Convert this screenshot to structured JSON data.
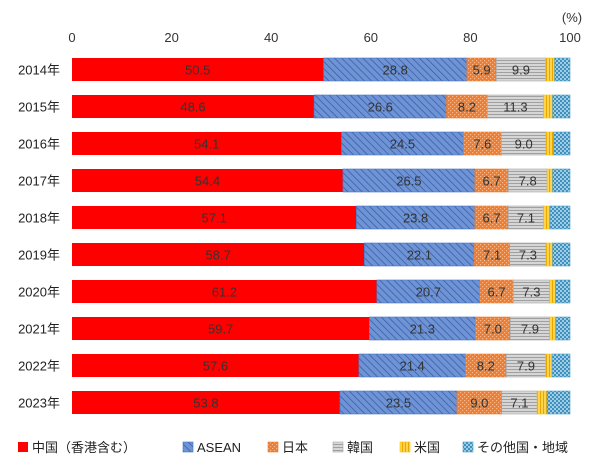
{
  "chart_data": {
    "type": "bar",
    "orientation": "horizontal",
    "stacked": true,
    "unit_label": "(%)",
    "xlim": [
      0,
      100
    ],
    "x_ticks": [
      0,
      20,
      40,
      60,
      80,
      100
    ],
    "grid": false,
    "legend_position": "bottom",
    "categories": [
      "2014年",
      "2015年",
      "2016年",
      "2017年",
      "2018年",
      "2019年",
      "2020年",
      "2021年",
      "2022年",
      "2023年"
    ],
    "series": [
      {
        "name": "中国（香港含む）",
        "color": "#ff0000",
        "pattern": "solid",
        "values": [
          50.5,
          48.6,
          54.1,
          54.4,
          57.1,
          58.7,
          61.2,
          59.7,
          57.6,
          53.8
        ],
        "labels": [
          "50.5",
          "48.6",
          "54.1",
          "54.4",
          "57.1",
          "58.7",
          "61.2",
          "59.7",
          "57.6",
          "53.8"
        ]
      },
      {
        "name": "ASEAN",
        "color": "#4472c4",
        "pattern": "diagonal",
        "values": [
          28.8,
          26.6,
          24.5,
          26.5,
          23.8,
          22.1,
          20.7,
          21.3,
          21.4,
          23.5
        ],
        "labels": [
          "28.8",
          "26.6",
          "24.5",
          "26.5",
          "23.8",
          "22.1",
          "20.7",
          "21.3",
          "21.4",
          "23.5"
        ]
      },
      {
        "name": "日本",
        "color": "#ed7d31",
        "pattern": "dots",
        "values": [
          5.9,
          8.2,
          7.6,
          6.7,
          6.7,
          7.1,
          6.7,
          7.0,
          8.2,
          9.0
        ],
        "labels": [
          "5.9",
          "8.2",
          "7.6",
          "6.7",
          "6.7",
          "7.1",
          "6.7",
          "7.0",
          "8.2",
          "9.0"
        ]
      },
      {
        "name": "韓国",
        "color": "#a5a5a5",
        "pattern": "hlines",
        "values": [
          9.9,
          11.3,
          9.0,
          7.8,
          7.1,
          7.3,
          7.3,
          7.9,
          7.9,
          7.1
        ],
        "labels": [
          "9.9",
          "11.3",
          "9.0",
          "7.8",
          "7.1",
          "7.3",
          "7.3",
          "7.9",
          "7.9",
          "7.1"
        ]
      },
      {
        "name": "米国",
        "color": "#ffc000",
        "pattern": "vlines",
        "values": [
          1.8,
          1.8,
          1.5,
          1.1,
          1.3,
          1.3,
          1.2,
          1.3,
          1.3,
          2.0
        ],
        "labels": null
      },
      {
        "name": "その他国・地域",
        "color": "#4a9fc7",
        "pattern": "checker",
        "values": [
          3.1,
          3.5,
          3.3,
          3.5,
          4.0,
          3.5,
          2.9,
          2.8,
          3.6,
          4.6
        ],
        "labels": null
      }
    ]
  }
}
